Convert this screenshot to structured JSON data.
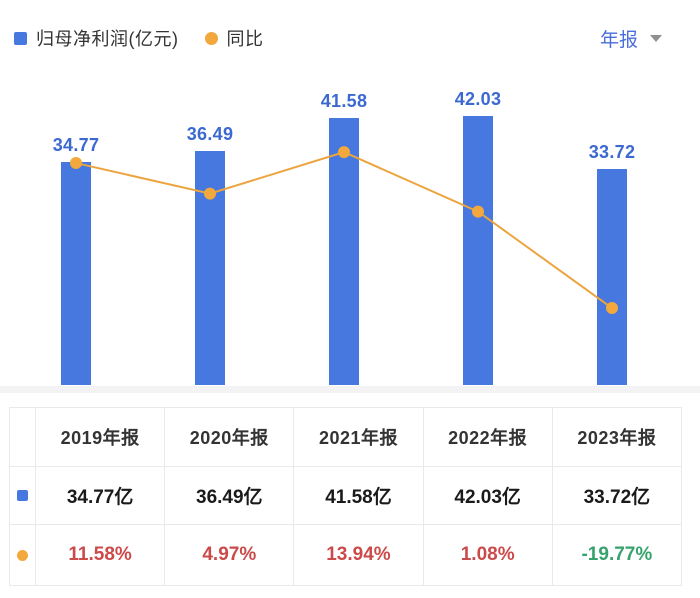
{
  "header": {
    "legend": [
      {
        "label": "归母净利润(亿元)",
        "marker": "square",
        "color": "#4678e0"
      },
      {
        "label": "同比",
        "marker": "circle",
        "color": "#f2a83c"
      }
    ],
    "period_selector": {
      "label": "年报"
    }
  },
  "chart_data": {
    "type": "bar+line",
    "categories": [
      "2019年报",
      "2020年报",
      "2021年报",
      "2022年报",
      "2023年报"
    ],
    "series": [
      {
        "name": "归母净利润(亿元)",
        "type": "bar",
        "unit": "亿元",
        "color": "#4678e0",
        "values": [
          34.77,
          36.49,
          41.58,
          42.03,
          33.72
        ],
        "data_labels": [
          "34.77",
          "36.49",
          "41.58",
          "42.03",
          "33.72"
        ]
      },
      {
        "name": "同比",
        "type": "line",
        "unit": "%",
        "color": "#eca43e",
        "values": [
          11.58,
          4.97,
          13.94,
          1.08,
          -19.77
        ],
        "data_labels": [
          "11.58%",
          "4.97%",
          "13.94%",
          "1.08%",
          "-19.77%"
        ]
      }
    ],
    "legend_position": "top-left",
    "grid": false,
    "x_axis_labels_shown": false,
    "bar_axis_min": 0
  },
  "table": {
    "headers": [
      "2019年报",
      "2020年报",
      "2021年报",
      "2022年报",
      "2023年报"
    ],
    "rows": [
      {
        "marker": "square",
        "marker_color": "#4678e0",
        "cells": [
          {
            "text": "34.77亿"
          },
          {
            "text": "36.49亿"
          },
          {
            "text": "41.58亿"
          },
          {
            "text": "42.03亿"
          },
          {
            "text": "33.72亿"
          }
        ]
      },
      {
        "marker": "circle",
        "marker_color": "#f2a83c",
        "cells": [
          {
            "text": "11.58%",
            "color": "#cb4a4a"
          },
          {
            "text": "4.97%",
            "color": "#cb4a4a"
          },
          {
            "text": "13.94%",
            "color": "#cb4a4a"
          },
          {
            "text": "1.08%",
            "color": "#cb4a4a"
          },
          {
            "text": "-19.77%",
            "color": "#36a26d"
          }
        ]
      }
    ]
  },
  "colors": {
    "bar": "#4678e0",
    "bar_label": "#3c69d1",
    "line": "#eca43e",
    "dot": "#f2a83c",
    "period_text": "#4a6edb",
    "positive_pct": "#cb4a4a",
    "negative_pct": "#36a26d",
    "table_border": "#e9e9e9",
    "axis_band": "#f3f3f3"
  }
}
